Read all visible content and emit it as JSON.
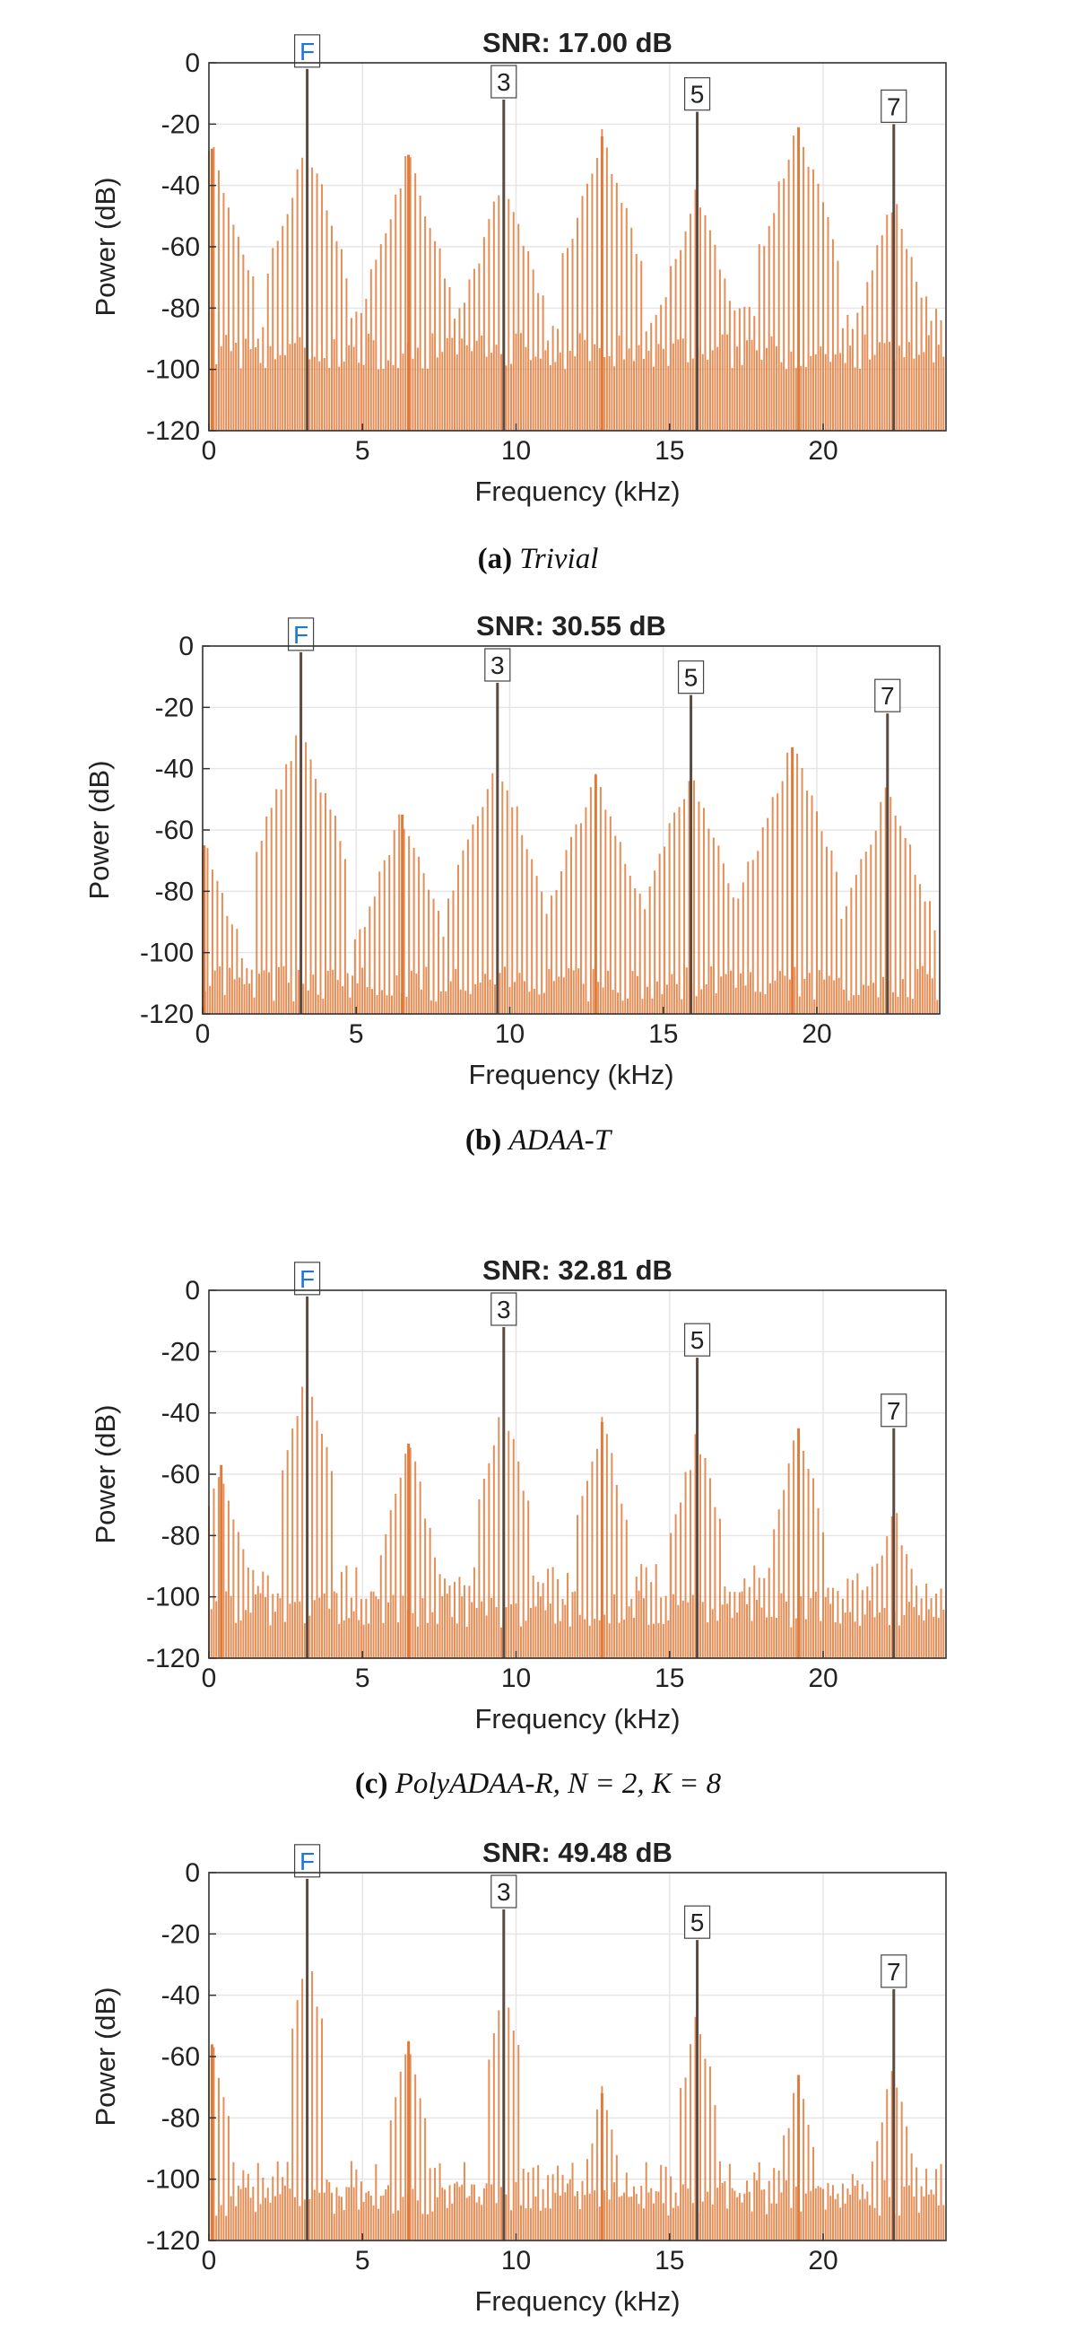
{
  "chart_data": [
    {
      "type": "bar",
      "title": "SNR:  17.00 dB",
      "xlabel": "Frequency (kHz)",
      "ylabel": "Power (dB)",
      "xlim": [
        0,
        24
      ],
      "ylim": [
        -120,
        0
      ],
      "xticks": [
        0,
        5,
        10,
        15,
        20
      ],
      "yticks": [
        0,
        -20,
        -40,
        -60,
        -80,
        -100,
        -120
      ],
      "grid": true,
      "bar_color": "#e07a3a",
      "harmonic_color": "#5a4a40",
      "harmonics": [
        {
          "label": "F",
          "x": 3.2,
          "y": -2
        },
        {
          "label": "3",
          "x": 9.6,
          "y": -12
        },
        {
          "label": "5",
          "x": 15.9,
          "y": -16
        },
        {
          "label": "7",
          "x": 22.3,
          "y": -20
        }
      ],
      "peaks": [
        {
          "x": 0.1,
          "y": -28
        },
        {
          "x": 6.5,
          "y": -30
        },
        {
          "x": 12.8,
          "y": -24
        },
        {
          "x": 19.2,
          "y": -21
        }
      ],
      "floor": -85,
      "noise_base": -100,
      "skirt_width": 1.4,
      "skirt_decay": 32,
      "spacing": 0.16,
      "caption": {
        "tag": "(a)",
        "text": "Trivial"
      }
    },
    {
      "type": "bar",
      "title": "SNR:  30.55 dB",
      "xlabel": "Frequency (kHz)",
      "ylabel": "Power (dB)",
      "xlim": [
        0,
        24
      ],
      "ylim": [
        -120,
        0
      ],
      "xticks": [
        0,
        5,
        10,
        15,
        20
      ],
      "yticks": [
        0,
        -20,
        -40,
        -60,
        -80,
        -100,
        -120
      ],
      "grid": true,
      "bar_color": "#e07a3a",
      "harmonic_color": "#5a4a40",
      "harmonics": [
        {
          "label": "F",
          "x": 3.2,
          "y": -2
        },
        {
          "label": "3",
          "x": 9.6,
          "y": -12
        },
        {
          "label": "5",
          "x": 15.9,
          "y": -16
        },
        {
          "label": "7",
          "x": 22.3,
          "y": -22
        }
      ],
      "peaks": [
        {
          "x": 0.05,
          "y": -65
        },
        {
          "x": 6.5,
          "y": -55
        },
        {
          "x": 12.8,
          "y": -42
        },
        {
          "x": 19.2,
          "y": -33
        }
      ],
      "floor": -112,
      "noise_base": -116,
      "skirt_width": 1.6,
      "skirt_decay": 28,
      "spacing": 0.16,
      "caption": {
        "tag": "(b)",
        "text": "ADAA-T"
      }
    },
    {
      "type": "bar",
      "title": "SNR:  32.81 dB",
      "xlabel": "Frequency (kHz)",
      "ylabel": "Power (dB)",
      "xlim": [
        0,
        24
      ],
      "ylim": [
        -120,
        0
      ],
      "xticks": [
        0,
        5,
        10,
        15,
        20
      ],
      "yticks": [
        0,
        -20,
        -40,
        -60,
        -80,
        -100,
        -120
      ],
      "grid": true,
      "bar_color": "#e07a3a",
      "harmonic_color": "#5a4a40",
      "harmonics": [
        {
          "label": "F",
          "x": 3.2,
          "y": -2
        },
        {
          "label": "3",
          "x": 9.6,
          "y": -12
        },
        {
          "label": "5",
          "x": 15.9,
          "y": -22
        },
        {
          "label": "7",
          "x": 22.3,
          "y": -45
        }
      ],
      "peaks": [
        {
          "x": 0.4,
          "y": -57
        },
        {
          "x": 6.5,
          "y": -50
        },
        {
          "x": 12.8,
          "y": -43
        },
        {
          "x": 19.2,
          "y": -45
        }
      ],
      "floor": -95,
      "noise_base": -110,
      "skirt_width": 0.9,
      "skirt_decay": 40,
      "spacing": 0.16,
      "caption": {
        "tag": "(c)",
        "text": "PolyADAA-R, N = 2, K = 8"
      }
    },
    {
      "type": "bar",
      "title": "SNR:  49.48 dB",
      "xlabel": "Frequency (kHz)",
      "ylabel": "Power (dB)",
      "xlim": [
        0,
        24
      ],
      "ylim": [
        -120,
        0
      ],
      "xticks": [
        0,
        5,
        10,
        15,
        20
      ],
      "yticks": [
        0,
        -20,
        -40,
        -60,
        -80,
        -100,
        -120
      ],
      "grid": true,
      "bar_color": "#e07a3a",
      "harmonic_color": "#5a4a40",
      "harmonics": [
        {
          "label": "F",
          "x": 3.2,
          "y": -2
        },
        {
          "label": "3",
          "x": 9.6,
          "y": -12
        },
        {
          "label": "5",
          "x": 15.9,
          "y": -22
        },
        {
          "label": "7",
          "x": 22.3,
          "y": -38
        }
      ],
      "peaks": [
        {
          "x": 0.1,
          "y": -56
        },
        {
          "x": 6.5,
          "y": -55
        },
        {
          "x": 12.8,
          "y": -72
        },
        {
          "x": 19.2,
          "y": -66
        }
      ],
      "floor": -100,
      "noise_base": -112,
      "skirt_width": 0.6,
      "skirt_decay": 45,
      "spacing": 0.16,
      "caption": {
        "tag": "",
        "text": ""
      }
    }
  ]
}
